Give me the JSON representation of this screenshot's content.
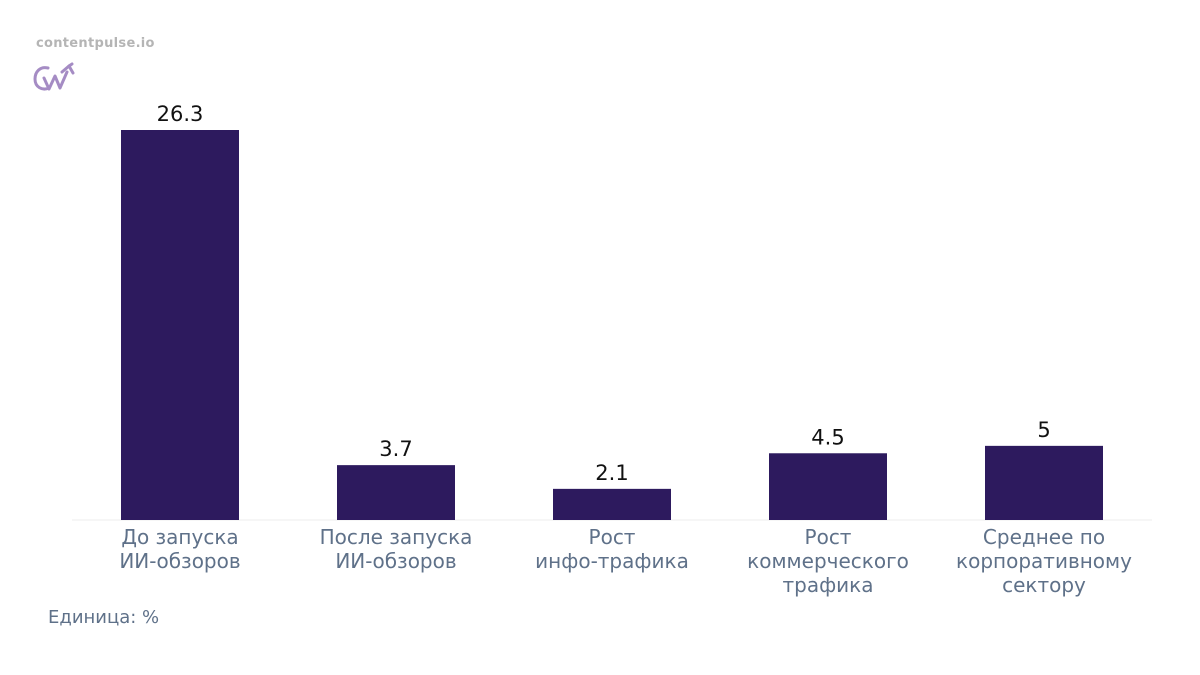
{
  "brand": {
    "site": "contentpulse.io",
    "logo_icon": "cw-growth-logo-icon",
    "logo_color": "#a58cc4"
  },
  "colors": {
    "bar": "#2d1a5e",
    "value_text": "#111111",
    "axis_text": "#5f7189",
    "baseline": "#ececec"
  },
  "footer": {
    "unit_label": "Единица: %"
  },
  "chart_data": {
    "type": "bar",
    "categories": [
      [
        "До запуска",
        "ИИ-обзоров"
      ],
      [
        "После запуска",
        "ИИ-обзоров"
      ],
      [
        "Рост",
        "инфо-трафика"
      ],
      [
        "Рост",
        "коммерческого",
        "трафика"
      ],
      [
        "Среднее по",
        "корпоративному",
        "сектору"
      ]
    ],
    "values": [
      26.3,
      3.7,
      2.1,
      4.5,
      5
    ],
    "value_labels": [
      "26.3",
      "3.7",
      "2.1",
      "4.5",
      "5"
    ],
    "title": "",
    "xlabel": "",
    "ylabel": "",
    "ylim": [
      0,
      26.3
    ],
    "grid": false,
    "legend": "none"
  }
}
